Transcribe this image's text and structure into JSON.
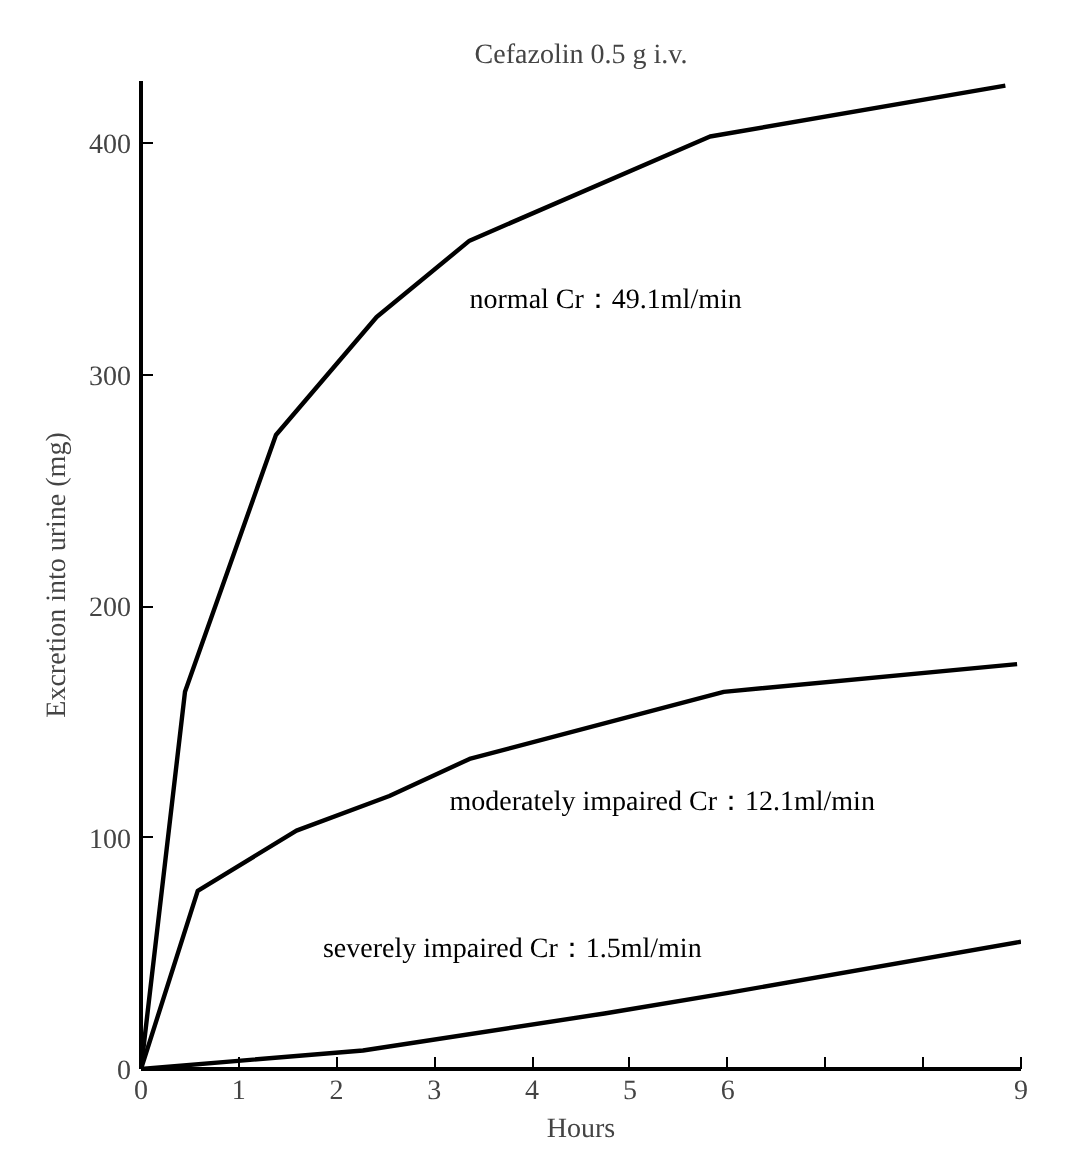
{
  "chart_data": {
    "type": "line",
    "title": "Cefazolin 0.5 g i.v.",
    "xlabel": "Hours",
    "ylabel": "Excretion into urine (mg)",
    "xlim": [
      0,
      9
    ],
    "ylim": [
      0,
      427
    ],
    "xticks": [
      0,
      1,
      2,
      3,
      4,
      5,
      6,
      {
        "value": 7,
        "label": null
      },
      {
        "value": 8,
        "label": null
      },
      9
    ],
    "yticks": [
      0,
      100,
      200,
      300,
      400
    ],
    "grid": false,
    "legend": false,
    "marker": "none",
    "line_style": "solid",
    "series": [
      {
        "name": "normal Cr：49.1ml/min",
        "color": "#000000",
        "x": [
          0,
          0.45,
          1.38,
          2.41,
          3.36,
          5.82,
          8.84
        ],
        "values": [
          0,
          163,
          274,
          325,
          358,
          403,
          425
        ]
      },
      {
        "name": "moderately impaired Cr：12.1ml/min",
        "color": "#000000",
        "x": [
          0,
          0.58,
          1.59,
          2.54,
          3.36,
          5.96,
          8.96
        ],
        "values": [
          0,
          77,
          103,
          118,
          134,
          163,
          175
        ]
      },
      {
        "name": "severely impaired Cr：1.5ml/min",
        "color": "#000000",
        "x": [
          0,
          2.27,
          4.74,
          6.02,
          9
        ],
        "values": [
          0,
          8,
          24,
          33,
          55
        ]
      }
    ]
  }
}
